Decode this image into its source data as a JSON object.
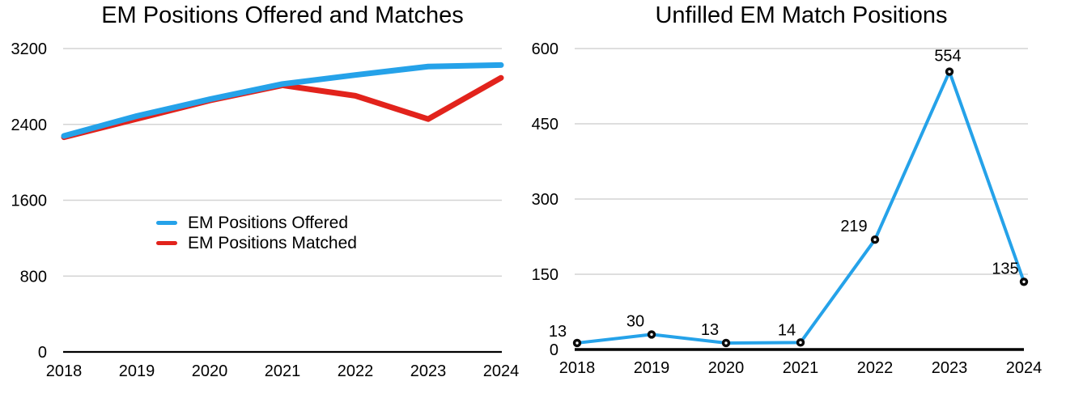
{
  "palette": {
    "line_blue": "#25A2E9",
    "line_red": "#E2231C",
    "gridline": "#D4D4D4",
    "axis": "#000000",
    "text": "#000000",
    "marker_fill": "#0B0B0B",
    "marker_center": "#FFFFFF",
    "background": "#FFFFFF"
  },
  "chart_data": [
    {
      "type": "line",
      "title": "EM Positions Offered and Matches",
      "categories": [
        "2018",
        "2019",
        "2020",
        "2021",
        "2022",
        "2023",
        "2024"
      ],
      "series": [
        {
          "name": "EM Positions Offered",
          "color": "#25A2E9",
          "values": [
            2278,
            2488,
            2665,
            2826,
            2921,
            3010,
            3026
          ]
        },
        {
          "name": "EM Positions Matched",
          "color": "#E2231C",
          "values": [
            2265,
            2458,
            2652,
            2812,
            2702,
            2456,
            2891
          ]
        }
      ],
      "ylim": [
        0,
        3200
      ],
      "yticks": [
        0,
        800,
        1600,
        2400,
        3200
      ],
      "grid": true,
      "markers": false,
      "data_labels": false,
      "legend_position": "inside-center-left",
      "legend": [
        "EM Positions Offered",
        "EM Positions Matched"
      ]
    },
    {
      "type": "line",
      "title": "Unfilled EM Match Positions",
      "categories": [
        "2018",
        "2019",
        "2020",
        "2021",
        "2022",
        "2023",
        "2024"
      ],
      "series": [
        {
          "name": "Unfilled EM Match Positions",
          "color": "#25A2E9",
          "values": [
            13,
            30,
            13,
            14,
            219,
            554,
            135
          ]
        }
      ],
      "ylim": [
        0,
        600
      ],
      "yticks": [
        0,
        150,
        300,
        450,
        600
      ],
      "grid": true,
      "markers": true,
      "data_labels": true,
      "data_label_values": [
        "13",
        "30",
        "13",
        "14",
        "219",
        "554",
        "135"
      ],
      "legend_position": "none"
    }
  ]
}
